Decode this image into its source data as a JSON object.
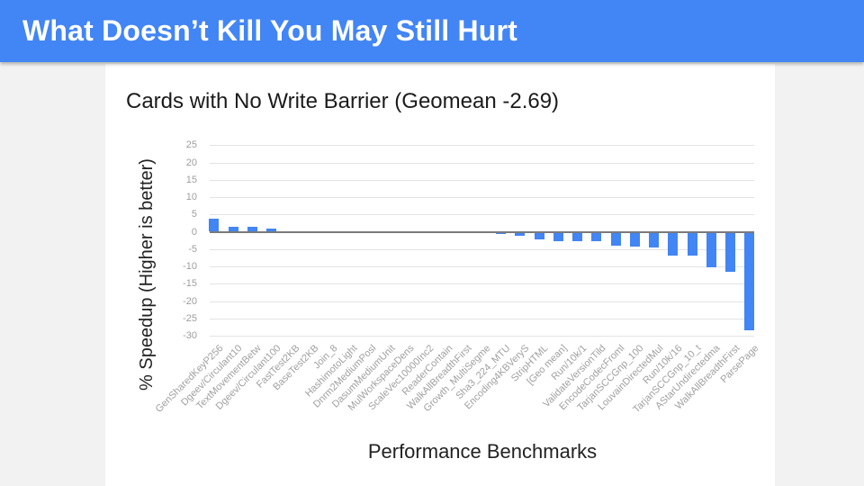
{
  "header": {
    "title": "What Doesn’t Kill You May Still Hurt",
    "bg_color": "#4285F4",
    "text_color": "#ffffff"
  },
  "chart_data": {
    "type": "bar",
    "title": "Cards with No Write Barrier (Geomean -2.69)",
    "xlabel": "Performance Benchmarks",
    "ylabel": "% Speedup (Higher is better)",
    "ylim": [
      -30,
      25
    ],
    "yticks": [
      25,
      20,
      15,
      10,
      5,
      0,
      -5,
      -10,
      -15,
      -20,
      -25,
      -30
    ],
    "grid": true,
    "legend_position": "none",
    "bar_color": "#4285F4",
    "categories": [
      "GenSharedKeyP256",
      "Dgeev/Circulant10",
      "TextMovementBetw",
      "Dgeev/Circulant100",
      "FastTest2KB",
      "BaseTest2KB",
      "Join_8",
      "HashimotoLight",
      "Dnrm2MediumPosl",
      "DasumMediumUnit",
      "MulWorkspaceDens",
      "ScaleVec10000Inc2",
      "ReaderContain",
      "WalkAllBreadthFirst",
      "Growth_MultiSegme",
      "Sha3_224_MTU",
      "Encoding4KBVeryS",
      "StripHTML",
      "[Geo mean]",
      "Run/10k/1",
      "ValidateVersionTild",
      "EncodeCodecFroml",
      "TarjanSCCGnp_100",
      "LouvainDirectedMul",
      "Run/10k/16",
      "TarjanSCCGnp_10_t",
      "AStarUndirectedma",
      "WalkAllBreadthFirst",
      "ParsePage"
    ],
    "values": [
      3.8,
      1.5,
      1.3,
      0.9,
      0.2,
      0.1,
      0.1,
      0.0,
      0.0,
      -0.1,
      -0.1,
      -0.1,
      -0.2,
      -0.2,
      -0.3,
      -0.7,
      -1.2,
      -2.2,
      -2.69,
      -2.8,
      -2.8,
      -4.0,
      -4.3,
      -4.5,
      -6.8,
      -6.9,
      -10.3,
      -11.5,
      -28.4
    ]
  }
}
